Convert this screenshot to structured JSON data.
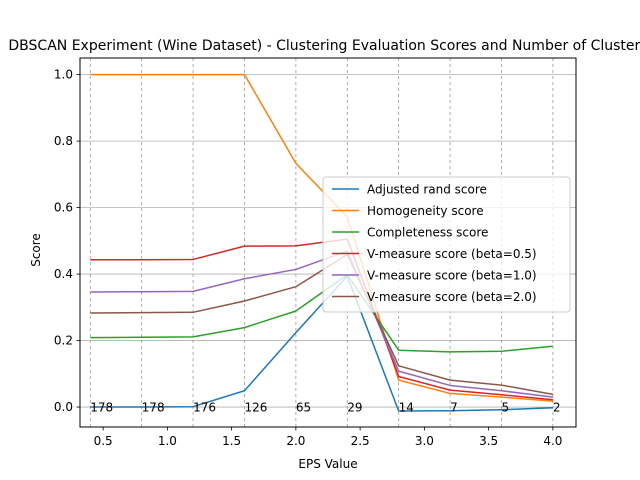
{
  "chart_data": {
    "type": "line",
    "title": "DBSCAN Experiment (Wine Dataset) - Clustering Evaluation Scores and Number of Clusters",
    "xlabel": "EPS Value",
    "ylabel": "Score",
    "xlim": [
      0.32,
      4.18
    ],
    "ylim": [
      -0.06,
      1.05
    ],
    "xticks": [
      0.5,
      1.0,
      1.5,
      2.0,
      2.5,
      3.0,
      3.5,
      4.0
    ],
    "xtick_labels": [
      "0.5",
      "1.0",
      "1.5",
      "2.0",
      "2.5",
      "3.0",
      "3.5",
      "4.0"
    ],
    "yticks": [
      0.0,
      0.2,
      0.4,
      0.6,
      0.8,
      1.0
    ],
    "ytick_labels": [
      "0.0",
      "0.2",
      "0.4",
      "0.6",
      "0.8",
      "1.0"
    ],
    "grid": "horizontal",
    "legend_position": "center-right",
    "x": [
      0.4,
      0.8,
      1.2,
      1.6,
      2.0,
      2.4,
      2.8,
      3.2,
      3.6,
      4.0
    ],
    "series": [
      {
        "name": "Adjusted rand score",
        "color": "#1f77b4",
        "values": [
          0.0,
          0.0,
          0.001,
          0.049,
          0.224,
          0.394,
          -0.012,
          -0.011,
          -0.008,
          -0.002
        ]
      },
      {
        "name": "Homogeneity score",
        "color": "#ff7f0e",
        "values": [
          1.0,
          1.0,
          1.0,
          1.0,
          0.733,
          0.572,
          0.081,
          0.041,
          0.03,
          0.018
        ]
      },
      {
        "name": "Completeness score",
        "color": "#2ca02c",
        "values": [
          0.209,
          0.21,
          0.211,
          0.239,
          0.289,
          0.398,
          0.171,
          0.166,
          0.168,
          0.183
        ]
      },
      {
        "name": "V-measure score (beta=0.5)",
        "color": "#d62728",
        "values": [
          0.443,
          0.443,
          0.444,
          0.484,
          0.485,
          0.505,
          0.092,
          0.051,
          0.037,
          0.022
        ]
      },
      {
        "name": "V-measure score (beta=1.0)",
        "color": "#9467bd",
        "values": [
          0.346,
          0.347,
          0.348,
          0.386,
          0.414,
          0.469,
          0.108,
          0.065,
          0.049,
          0.03
        ]
      },
      {
        "name": "V-measure score (beta=2.0)",
        "color": "#8c564b",
        "values": [
          0.283,
          0.284,
          0.285,
          0.319,
          0.362,
          0.459,
          0.124,
          0.081,
          0.066,
          0.038
        ]
      }
    ],
    "cluster_counts": [
      178,
      178,
      176,
      126,
      65,
      29,
      14,
      7,
      5,
      2
    ],
    "cluster_count_labels": [
      "178",
      "178",
      "176",
      "126",
      "65",
      "29",
      "14",
      "7",
      "5",
      "2"
    ]
  }
}
